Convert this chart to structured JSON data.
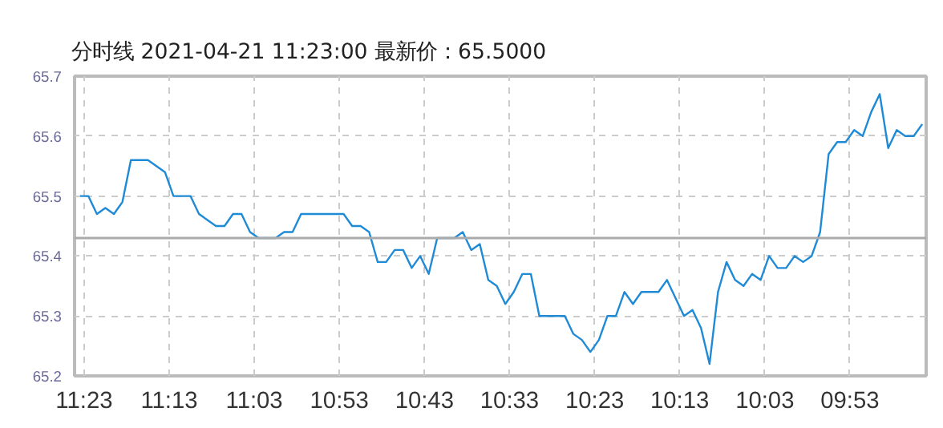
{
  "chart_data": {
    "type": "line",
    "title": "分时线  2021-04-21 11:23:00  最新价：65.5000",
    "x": [
      11.3917,
      11.375,
      11.3583,
      11.3417,
      11.325,
      11.3083,
      11.2917,
      11.2583,
      11.225,
      11.2083,
      11.175,
      11.1583,
      11.125,
      11.1083,
      11.0917,
      11.075,
      11.0583,
      11.0417,
      11.0083,
      10.9917,
      10.975,
      10.9583,
      10.875,
      10.8583,
      10.8417,
      10.825,
      10.8083,
      10.7917,
      10.775,
      10.7583,
      10.7417,
      10.725,
      10.7083,
      10.6917,
      10.6583,
      10.6417,
      10.625,
      10.6083,
      10.5917,
      10.575,
      10.5583,
      10.5417,
      10.525,
      10.5083,
      10.4917,
      10.4417,
      10.425,
      10.4083,
      10.3917,
      10.375,
      10.3583,
      10.3417,
      10.325,
      10.3083,
      10.2917,
      10.2583,
      10.2417,
      10.225,
      10.2083,
      10.1917,
      10.175,
      10.1583,
      10.1417,
      10.125,
      10.1083,
      10.0917,
      10.075,
      10.0583,
      10.0417,
      10.025,
      10.0083,
      9.9917,
      9.975,
      9.9583,
      9.9417,
      9.925,
      9.9083,
      9.8917,
      9.875,
      9.8583,
      9.8417,
      9.825,
      9.8083,
      9.7917,
      9.775,
      9.7583,
      9.7417
    ],
    "values": [
      65.5,
      65.5,
      65.47,
      65.48,
      65.47,
      65.49,
      65.56,
      65.56,
      65.54,
      65.5,
      65.5,
      65.47,
      65.45,
      65.45,
      65.47,
      65.47,
      65.44,
      65.43,
      65.43,
      65.44,
      65.44,
      65.47,
      65.47,
      65.45,
      65.45,
      65.44,
      65.39,
      65.39,
      65.41,
      65.41,
      65.38,
      65.4,
      65.37,
      65.43,
      65.43,
      65.44,
      65.41,
      65.42,
      65.36,
      65.35,
      65.32,
      65.34,
      65.37,
      65.37,
      65.3,
      65.3,
      65.27,
      65.26,
      65.24,
      65.26,
      65.3,
      65.3,
      65.34,
      65.32,
      65.34,
      65.34,
      65.36,
      65.33,
      65.3,
      65.31,
      65.28,
      65.22,
      65.34,
      65.39,
      65.36,
      65.35,
      65.37,
      65.36,
      65.4,
      65.38,
      65.38,
      65.4,
      65.39,
      65.4,
      65.44,
      65.57,
      65.59,
      65.59,
      65.61,
      65.6,
      65.64,
      65.67,
      65.58,
      65.61,
      65.6,
      65.6,
      65.62
    ],
    "color": "#1f8ad6",
    "line_style": "solid",
    "xlim": [
      11.402,
      9.734
    ],
    "ylim": [
      65.2,
      65.7
    ],
    "xticks": [
      {
        "value": 11.3833,
        "label": "11:23"
      },
      {
        "value": 11.2167,
        "label": "11:13"
      },
      {
        "value": 11.05,
        "label": "11:03"
      },
      {
        "value": 10.8833,
        "label": "10:53"
      },
      {
        "value": 10.7167,
        "label": "10:43"
      },
      {
        "value": 10.55,
        "label": "10:33"
      },
      {
        "value": 10.3833,
        "label": "10:23"
      },
      {
        "value": 10.2167,
        "label": "10:13"
      },
      {
        "value": 10.05,
        "label": "10:03"
      },
      {
        "value": 9.8833,
        "label": "09:53"
      }
    ],
    "yticks": [
      65.2,
      65.3,
      65.4,
      65.5,
      65.6,
      65.7
    ],
    "grid": true,
    "ref_lines": [
      {
        "axis": "y",
        "value": 65.43,
        "color": "#aaaaaa"
      }
    ]
  }
}
